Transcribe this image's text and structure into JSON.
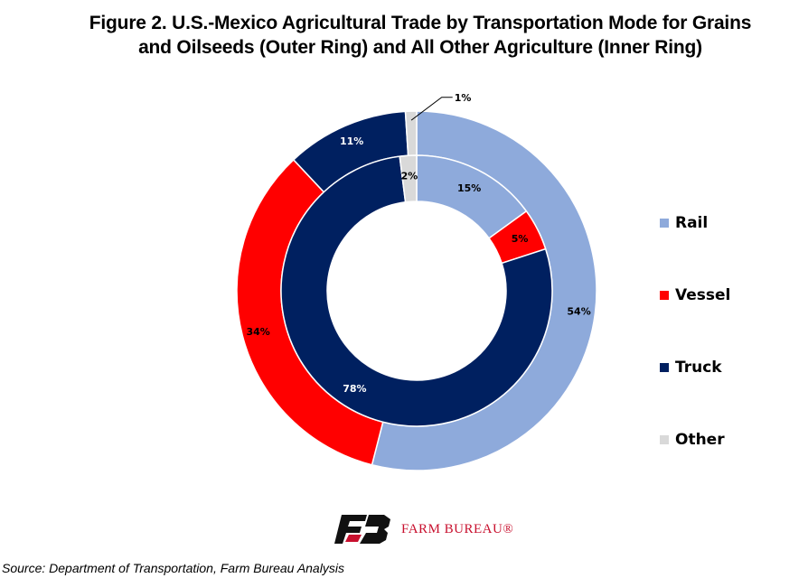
{
  "title": "Figure 2. U.S.-Mexico Agricultural Trade by Transportation Mode for Grains and Oilseeds (Outer Ring) and All Other Agriculture (Inner Ring)",
  "source": "Source: Department of Transportation, Farm Bureau Analysis",
  "logo": {
    "text": "FARM BUREAU®",
    "text_color": "#c8102e",
    "mark_color": "#111111",
    "accent_color": "#c8102e"
  },
  "colors": {
    "Rail": "#8eaadb",
    "Vessel": "#ff0000",
    "Truck": "#002060",
    "Other": "#d9d9d9"
  },
  "chart_data": {
    "type": "pie",
    "subtype": "donut",
    "categories": [
      "Rail",
      "Vessel",
      "Truck",
      "Other"
    ],
    "series": [
      {
        "ring": "outer",
        "values": [
          54,
          34,
          11,
          1
        ],
        "labels": [
          "54%",
          "34%",
          "11%",
          "1%"
        ]
      },
      {
        "ring": "inner",
        "values": [
          15,
          5,
          78,
          2
        ],
        "labels": [
          "15%",
          "5%",
          "78%",
          "2%"
        ]
      }
    ],
    "legend": {
      "position": "right",
      "entries": [
        "Rail",
        "Vessel",
        "Truck",
        "Other"
      ]
    }
  }
}
